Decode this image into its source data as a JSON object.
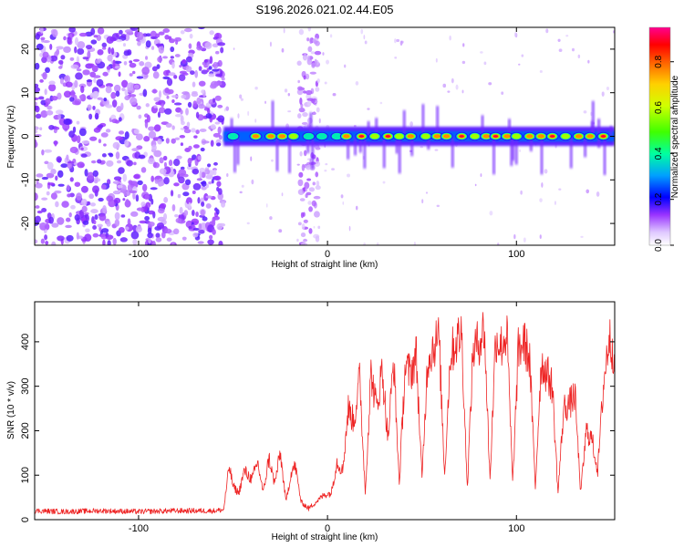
{
  "title": "S196.2026.021.02.44.E05",
  "chart_data": [
    {
      "type": "heatmap",
      "title": "S196.2026.021.02.44.E05",
      "xlabel": "Height of straight line (km)",
      "ylabel": "Frequency (Hz)",
      "xlim": [
        -155,
        152
      ],
      "ylim": [
        -25,
        25
      ],
      "xticks": [
        -100,
        0,
        100
      ],
      "xtick_labels": [
        "-100",
        "0",
        "100"
      ],
      "yticks": [
        -20,
        -10,
        0,
        10,
        20
      ],
      "ytick_labels": [
        "-20",
        "-10",
        "0",
        "10",
        "20"
      ],
      "colorbar": {
        "label": "Normalized spectral amplitude",
        "range": [
          0,
          0.95
        ],
        "ticks": [
          0.0,
          0.2,
          0.4,
          0.6,
          0.8
        ],
        "tick_labels": [
          "0.0",
          "0.2",
          "0.4",
          "0.6",
          "0.8"
        ],
        "colors": [
          "#ffffff",
          "#cc99ff",
          "#7f00ff",
          "#0000ff",
          "#00c0ff",
          "#00ff80",
          "#80ff00",
          "#ffff00",
          "#ff8000",
          "#ff0000",
          "#ff0080"
        ]
      },
      "noise_region_x": [
        -155,
        -55
      ],
      "noise_band_x": [
        -15,
        -5
      ],
      "signal_band_x": [
        -55,
        152
      ],
      "signal_frequency_hz": 0,
      "peaks": [
        {
          "x": -50,
          "amp": 0.55
        },
        {
          "x": -38,
          "amp": 0.9
        },
        {
          "x": -30,
          "amp": 0.8
        },
        {
          "x": -24,
          "amp": 0.85
        },
        {
          "x": -18,
          "amp": 0.6
        },
        {
          "x": -10,
          "amp": 0.5
        },
        {
          "x": -3,
          "amp": 0.5
        },
        {
          "x": 5,
          "amp": 0.55
        },
        {
          "x": 10,
          "amp": 0.9
        },
        {
          "x": 18,
          "amp": 0.95
        },
        {
          "x": 25,
          "amp": 0.7
        },
        {
          "x": 32,
          "amp": 0.95
        },
        {
          "x": 38,
          "amp": 0.6
        },
        {
          "x": 44,
          "amp": 0.9
        },
        {
          "x": 52,
          "amp": 0.6
        },
        {
          "x": 58,
          "amp": 0.8
        },
        {
          "x": 63,
          "amp": 0.9
        },
        {
          "x": 71,
          "amp": 0.95
        },
        {
          "x": 78,
          "amp": 0.7
        },
        {
          "x": 84,
          "amp": 0.9
        },
        {
          "x": 89,
          "amp": 0.95
        },
        {
          "x": 95,
          "amp": 0.85
        },
        {
          "x": 100,
          "amp": 0.7
        },
        {
          "x": 107,
          "amp": 0.85
        },
        {
          "x": 113,
          "amp": 0.9
        },
        {
          "x": 119,
          "amp": 0.95
        },
        {
          "x": 126,
          "amp": 0.7
        },
        {
          "x": 133,
          "amp": 0.8
        },
        {
          "x": 139,
          "amp": 0.85
        },
        {
          "x": 146,
          "amp": 0.95
        }
      ]
    },
    {
      "type": "line",
      "xlabel": "Height of straight line (km)",
      "ylabel": "SNR (10 * v/v)",
      "xlim": [
        -155,
        152
      ],
      "ylim": [
        0,
        490
      ],
      "xticks": [
        -100,
        0,
        100
      ],
      "xtick_labels": [
        "-100",
        "0",
        "100"
      ],
      "yticks": [
        0,
        100,
        200,
        300,
        400
      ],
      "ytick_labels": [
        "0",
        "100",
        "200",
        "300",
        "400"
      ],
      "color": "#ee2222",
      "series": [
        {
          "name": "SNR",
          "x": [
            -155,
            -140,
            -120,
            -100,
            -80,
            -60,
            -55,
            -52,
            -50,
            -47,
            -44,
            -40,
            -37,
            -34,
            -31,
            -28,
            -25,
            -22,
            -19,
            -17,
            -14,
            -10,
            -6,
            -2,
            2,
            5,
            8,
            11,
            14,
            17,
            20,
            23,
            26,
            29,
            32,
            35,
            38,
            41,
            44,
            47,
            50,
            53,
            56,
            59,
            62,
            65,
            68,
            71,
            74,
            77,
            80,
            83,
            86,
            89,
            92,
            95,
            98,
            101,
            104,
            107,
            110,
            113,
            116,
            119,
            122,
            125,
            128,
            131,
            134,
            137,
            140,
            143,
            146,
            149,
            152
          ],
          "values": [
            20,
            18,
            20,
            18,
            20,
            20,
            22,
            120,
            75,
            60,
            110,
            90,
            130,
            60,
            140,
            80,
            150,
            40,
            110,
            120,
            40,
            25,
            40,
            55,
            60,
            130,
            110,
            250,
            220,
            320,
            60,
            330,
            250,
            340,
            180,
            360,
            80,
            340,
            330,
            370,
            90,
            360,
            390,
            410,
            100,
            370,
            400,
            420,
            70,
            380,
            400,
            430,
            90,
            410,
            390,
            420,
            80,
            380,
            400,
            360,
            70,
            350,
            330,
            300,
            60,
            250,
            260,
            280,
            60,
            200,
            180,
            110,
            300,
            410,
            370
          ]
        }
      ]
    }
  ]
}
